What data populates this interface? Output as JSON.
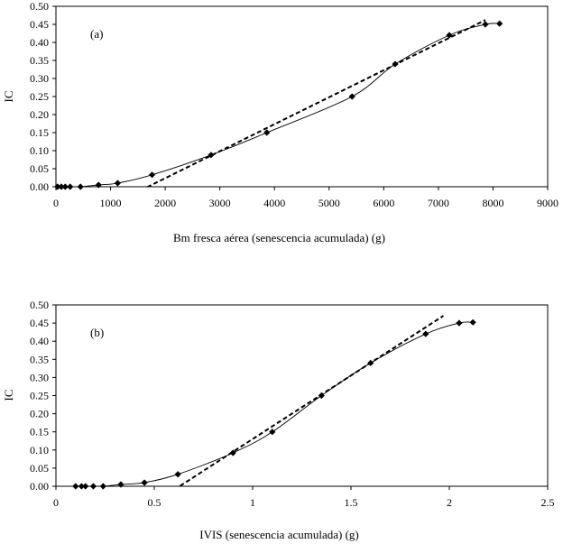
{
  "chart_data": [
    {
      "type": "scatter",
      "panel_label": "(a)",
      "xlabel": "Bm fresca aérea (senescencia acumulada) (g)",
      "ylabel": "IC",
      "xlim": [
        0,
        9000
      ],
      "ylim": [
        0,
        0.5
      ],
      "xticks": [
        0,
        1000,
        2000,
        3000,
        4000,
        5000,
        6000,
        7000,
        8000,
        9000
      ],
      "xtick_labels": [
        "0",
        "1000",
        "2000",
        "3000",
        "4000",
        "5000",
        "6000",
        "7000",
        "8000",
        "9000"
      ],
      "yticks": [
        0,
        0.05,
        0.1,
        0.15,
        0.2,
        0.25,
        0.3,
        0.35,
        0.4,
        0.45,
        0.5
      ],
      "ytick_labels": [
        "0.00",
        "0.05",
        "0.10",
        "0.15",
        "0.20",
        "0.25",
        "0.30",
        "0.35",
        "0.40",
        "0.45",
        "0.50"
      ],
      "grid": false,
      "series": [
        {
          "marker": "diamond",
          "line": "smooth",
          "x": [
            30,
            100,
            170,
            260,
            450,
            780,
            1130,
            1760,
            2840,
            3860,
            5420,
            6210,
            7200,
            7860,
            8120
          ],
          "y": [
            0.0,
            0.0,
            0.0,
            0.0,
            0.0,
            0.005,
            0.01,
            0.033,
            0.088,
            0.15,
            0.25,
            0.34,
            0.42,
            0.45,
            0.452
          ]
        }
      ],
      "trend_line": {
        "style": "dashed",
        "x": [
          1550,
          7860
        ],
        "y": [
          -0.01,
          0.462
        ]
      }
    },
    {
      "type": "scatter",
      "panel_label": "(b)",
      "xlabel": "IVIS (senescencia acumulada) (g)",
      "ylabel": "IC",
      "xlim": [
        0,
        2.5
      ],
      "ylim": [
        0,
        0.5
      ],
      "xticks": [
        0,
        0.5,
        1,
        1.5,
        2,
        2.5
      ],
      "xtick_labels": [
        "0",
        "0.5",
        "1",
        "1.5",
        "2",
        "2.5"
      ],
      "yticks": [
        0,
        0.05,
        0.1,
        0.15,
        0.2,
        0.25,
        0.3,
        0.35,
        0.4,
        0.45,
        0.5
      ],
      "ytick_labels": [
        "0.00",
        "0.05",
        "0.10",
        "0.15",
        "0.20",
        "0.25",
        "0.30",
        "0.35",
        "0.40",
        "0.45",
        "0.50"
      ],
      "grid": false,
      "series": [
        {
          "marker": "diamond",
          "line": "smooth",
          "x": [
            0.1,
            0.13,
            0.15,
            0.19,
            0.24,
            0.33,
            0.45,
            0.62,
            0.9,
            1.1,
            1.35,
            1.6,
            1.88,
            2.05,
            2.12
          ],
          "y": [
            0.0,
            0.0,
            0.0,
            0.0,
            0.0,
            0.005,
            0.01,
            0.033,
            0.092,
            0.15,
            0.25,
            0.34,
            0.42,
            0.45,
            0.452
          ]
        }
      ],
      "trend_line": {
        "style": "dashed",
        "x": [
          0.6,
          1.97
        ],
        "y": [
          -0.01,
          0.47
        ]
      }
    }
  ]
}
